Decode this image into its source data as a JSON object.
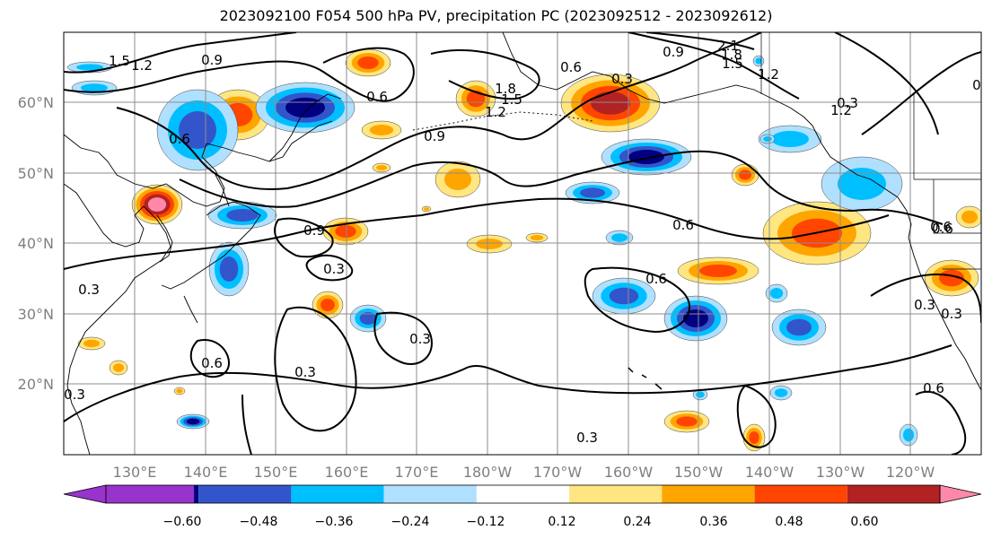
{
  "title": "2023092100 F054 500 hPa PV, precipitation PC (2023092512 - 2023092612)",
  "map": {
    "lat_labels": [
      "60°N",
      "50°N",
      "40°N",
      "30°N",
      "20°N"
    ],
    "lon_labels": [
      "130°E",
      "140°E",
      "150°E",
      "160°E",
      "170°E",
      "180°W",
      "170°W",
      "160°W",
      "150°W",
      "140°W",
      "130°W",
      "120°W"
    ],
    "contour_labels": [
      "1.5",
      "0.9",
      "1.2",
      "0.6",
      "0.3",
      "0.9",
      "1.2",
      "1.5",
      "1.8",
      "0.6",
      "0.3",
      "2.1",
      "1.8",
      "1.5",
      "1.2",
      "0.9",
      "0.6",
      "0.9",
      "0.6",
      "0.3",
      "0.6",
      "0.3",
      "0.6",
      "0.3",
      "0.6",
      "0.3",
      "0.6",
      "0.3",
      "0.3",
      "0.3",
      "0.6",
      "0.6",
      "1.2",
      "0.3"
    ]
  },
  "colorbar": {
    "colors": [
      "#9933cc",
      "#000080",
      "#3355cc",
      "#00bfff",
      "#b0e0ff",
      "#ffffff",
      "#ffe680",
      "#ffa500",
      "#ff4500",
      "#b22222",
      "#ff88aa"
    ],
    "tick_labels": [
      "−0.60",
      "−0.48",
      "−0.36",
      "−0.24",
      "−0.12",
      "0.12",
      "0.24",
      "0.36",
      "0.48",
      "0.60"
    ]
  },
  "fill_colors": {
    "neg1": "#00bfff",
    "neg2": "#3355cc",
    "neg3": "#000080",
    "neg0": "#b0e0ff",
    "pos0": "#ffe680",
    "pos1": "#ffa500",
    "pos2": "#ff4500",
    "pos3": "#b22222",
    "pos4": "#ff88aa"
  }
}
